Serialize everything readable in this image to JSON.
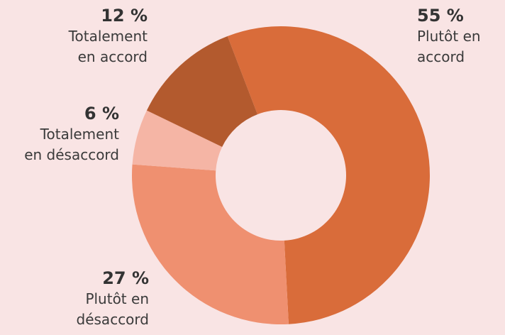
{
  "chart_data": {
    "type": "donut",
    "categories": [
      "Plutôt en\naccord",
      "Plutôt en\ndésaccord",
      "Totalement\nen désaccord",
      "Totalement\nen accord"
    ],
    "values": [
      55,
      27,
      6,
      12
    ],
    "value_labels": [
      "55 %",
      "27 %",
      "6 %",
      "12 %"
    ],
    "colors": [
      "#d96c3a",
      "#ef9070",
      "#f5b5a5",
      "#b35a2e"
    ]
  }
}
